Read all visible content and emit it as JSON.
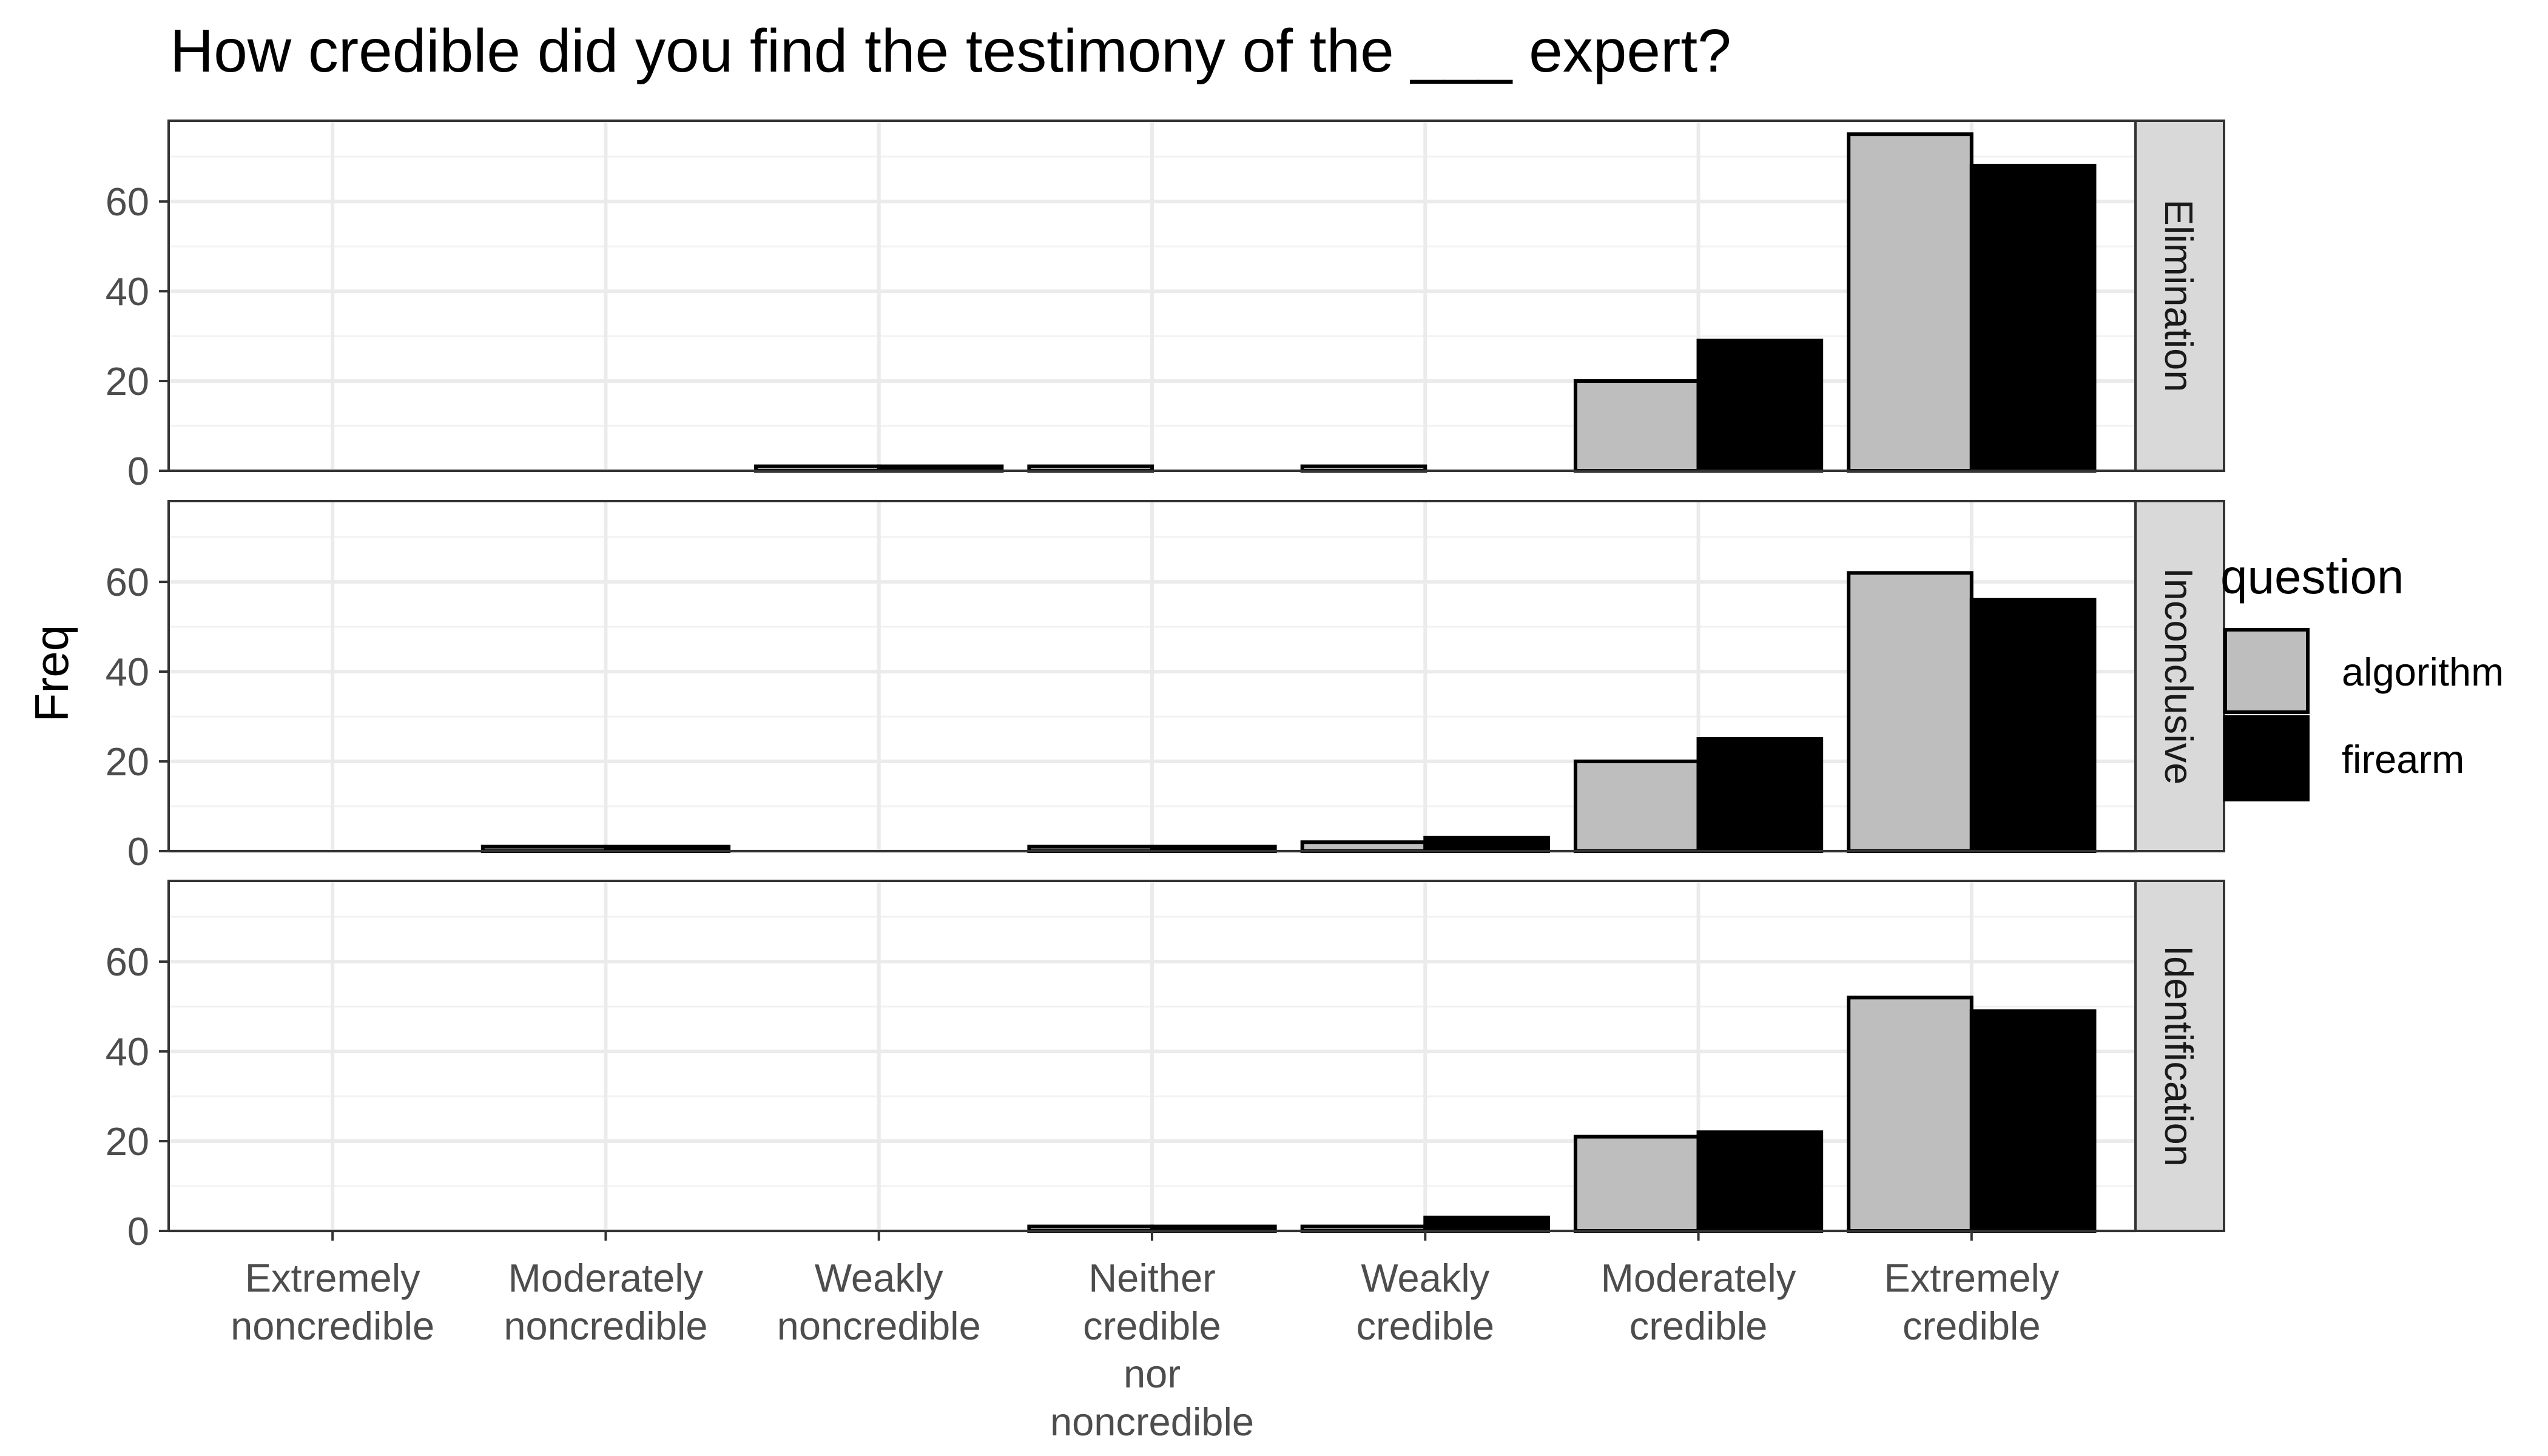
{
  "chart_data": {
    "type": "bar",
    "title": "How credible did you find the testimony of the ___ expert?",
    "xlabel": "",
    "ylabel": "Freq",
    "ylim": [
      0,
      78
    ],
    "yticks": [
      0,
      20,
      40,
      60
    ],
    "grid": true,
    "legend": {
      "title": "question",
      "position": "right"
    },
    "categories": [
      [
        "Extremely",
        "noncredible"
      ],
      [
        "Moderately",
        "noncredible"
      ],
      [
        "Weakly",
        "noncredible"
      ],
      [
        "Neither",
        "credible",
        "nor",
        "noncredible"
      ],
      [
        "Weakly",
        "credible"
      ],
      [
        "Moderately",
        "credible"
      ],
      [
        "Extremely",
        "credible"
      ]
    ],
    "series_meta": [
      {
        "name": "algorithm",
        "color": "#bebebe"
      },
      {
        "name": "firearm",
        "color": "#000000"
      }
    ],
    "panels": [
      {
        "label": "Elimination",
        "series": [
          {
            "name": "algorithm",
            "values": [
              0,
              0,
              1,
              1,
              1,
              20,
              75
            ]
          },
          {
            "name": "firearm",
            "values": [
              null,
              0,
              1,
              0,
              0,
              29,
              68
            ]
          }
        ]
      },
      {
        "label": "Inconclusive",
        "series": [
          {
            "name": "algorithm",
            "values": [
              0,
              1,
              0,
              1,
              2,
              20,
              62
            ]
          },
          {
            "name": "firearm",
            "values": [
              null,
              1,
              0,
              1,
              3,
              25,
              56
            ]
          }
        ]
      },
      {
        "label": "Identification",
        "series": [
          {
            "name": "algorithm",
            "values": [
              0,
              0,
              0,
              1,
              1,
              21,
              52
            ]
          },
          {
            "name": "firearm",
            "values": [
              null,
              0,
              0,
              1,
              3,
              22,
              49
            ]
          }
        ]
      }
    ]
  }
}
